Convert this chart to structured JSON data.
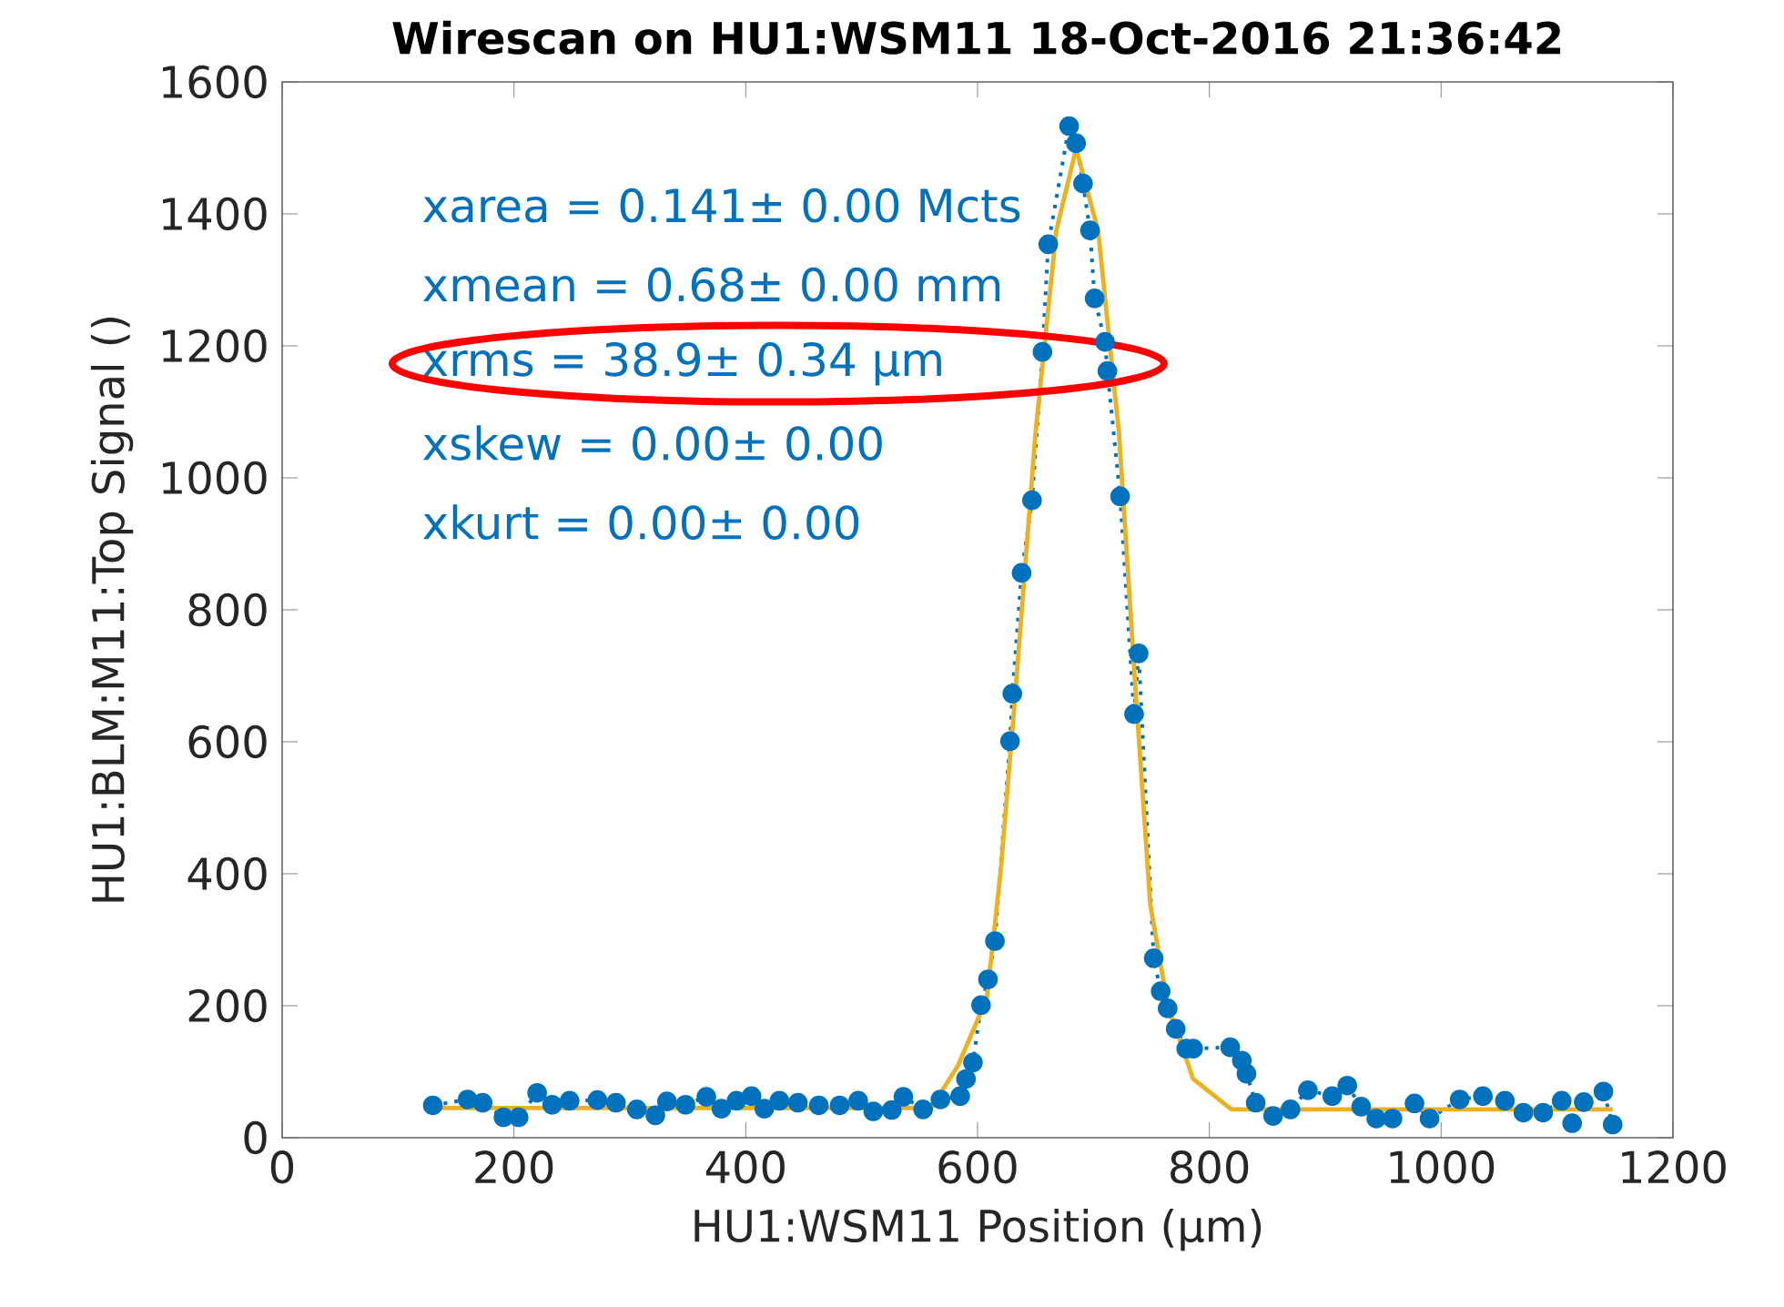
{
  "chart_data": {
    "type": "line",
    "title": "Wirescan on HU1:WSM11 18-Oct-2016 21:36:42",
    "xlabel": "HU1:WSM11 Position  (μm)",
    "ylabel": "HU1:BLM:M11:Top Signal  ()",
    "annotations": [
      "xarea =  0.141± 0.00 Mcts",
      "xmean =  0.68± 0.00 mm",
      "xrms =  38.9± 0.34 μm",
      "xskew =  0.00± 0.00",
      "xkurt =  0.00± 0.00"
    ],
    "xlim": [
      0,
      1200
    ],
    "xticks": [
      0,
      200,
      400,
      600,
      800,
      1000,
      1200
    ],
    "ylim": [
      0,
      1600
    ],
    "yticks": [
      0,
      200,
      400,
      600,
      800,
      1000,
      1200,
      1400,
      1600
    ],
    "series": [
      {
        "color": "#0072bd",
        "marker": "circle",
        "line_style": "dotted",
        "x": [
          130,
          160,
          173,
          191,
          204,
          220,
          233,
          248,
          272,
          288,
          306,
          322,
          332,
          348,
          366,
          379,
          392,
          405,
          416,
          429,
          445,
          463,
          481,
          497,
          510,
          526,
          536,
          553,
          568,
          585,
          590,
          596,
          603,
          609,
          615,
          628,
          630,
          638,
          647,
          656,
          661,
          679,
          685,
          691,
          697,
          701,
          710,
          712,
          723,
          735,
          739,
          752,
          758,
          764,
          771,
          780,
          786,
          818,
          828,
          832,
          840,
          855,
          870,
          885,
          906,
          919,
          931,
          944,
          958,
          977,
          990,
          1016,
          1036,
          1055,
          1071,
          1088,
          1104,
          1113,
          1123,
          1140,
          1148
        ],
        "values": [
          49,
          58,
          53,
          31,
          31,
          68,
          50,
          56,
          57,
          53,
          43,
          34,
          55,
          50,
          62,
          44,
          56,
          63,
          44,
          56,
          53,
          49,
          49,
          56,
          40,
          42,
          62,
          43,
          58,
          63,
          89,
          114,
          201,
          240,
          298,
          601,
          673,
          856,
          966,
          1191,
          1354,
          1533,
          1507,
          1446,
          1375,
          1272,
          1206,
          1162,
          972,
          642,
          734,
          272,
          222,
          196,
          165,
          135,
          135,
          137,
          117,
          97,
          53,
          33,
          43,
          72,
          63,
          79,
          47,
          29,
          29,
          52,
          29,
          58,
          63,
          56,
          38,
          38,
          56,
          22,
          54,
          70,
          20
        ]
      },
      {
        "color": "#edb120",
        "marker": "none",
        "line_style": "solid",
        "x": [
          130,
          560,
          583,
          608,
          620,
          632,
          650,
          668,
          685,
          704,
          722,
          737,
          749,
          764,
          786,
          819,
          1148
        ],
        "values": [
          45,
          45,
          109,
          211,
          405,
          660,
          1068,
          1375,
          1499,
          1375,
          1068,
          660,
          354,
          201,
          89,
          43,
          43
        ]
      }
    ]
  }
}
